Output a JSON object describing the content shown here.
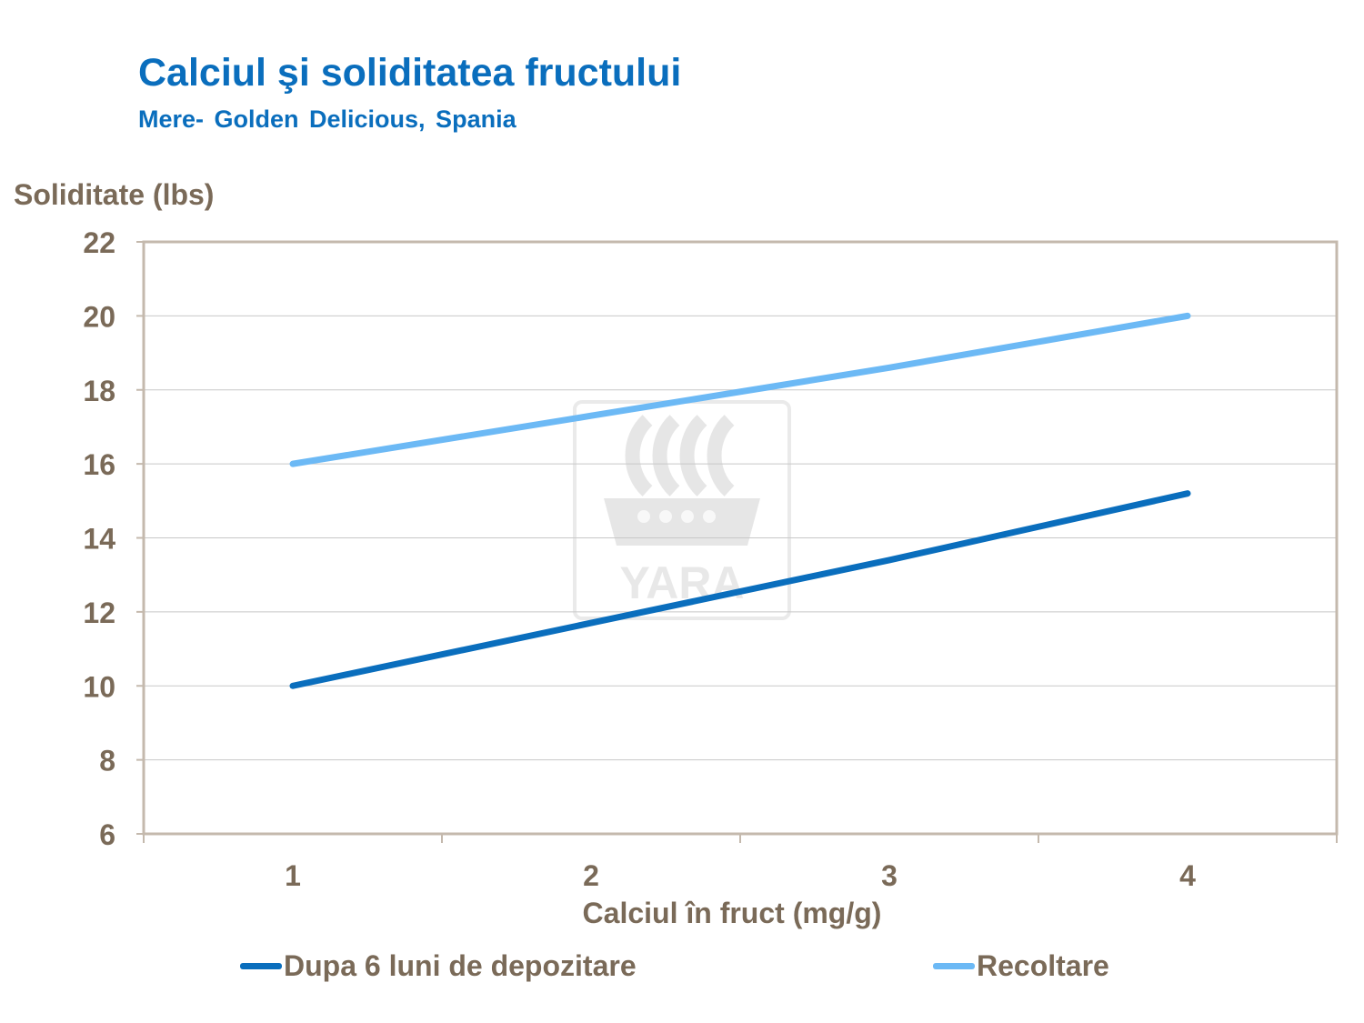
{
  "title": "Calciul şi soliditatea fructului",
  "subtitle": "Mere- Golden Delicious, Spania",
  "watermark": "YARA",
  "colors": {
    "title": "#0a6ebd",
    "text": "#7a6a58",
    "frame": "#c4b9ad",
    "grid": "#c8c8c8"
  },
  "chart_data": {
    "type": "line",
    "ylabel": "Soliditate (lbs)",
    "xlabel": "Calciul în fruct (mg/g)",
    "categories": [
      "1",
      "2",
      "3",
      "4"
    ],
    "x": [
      1,
      2,
      3,
      4
    ],
    "ylim": [
      6,
      22
    ],
    "yticks": [
      6,
      8,
      10,
      12,
      14,
      16,
      18,
      20,
      22
    ],
    "grid": true,
    "legend_position": "bottom",
    "series": [
      {
        "name": "Dupa 6 luni de depozitare",
        "color": "#0a6ebd",
        "values": [
          10,
          11.7,
          13.4,
          15.2
        ]
      },
      {
        "name": "Recoltare",
        "color": "#6cb9f5",
        "values": [
          16,
          17.3,
          18.6,
          20
        ]
      }
    ]
  }
}
